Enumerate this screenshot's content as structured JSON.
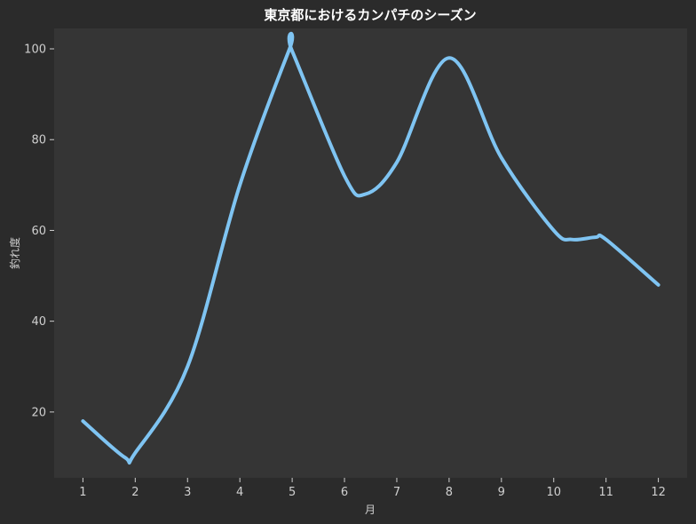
{
  "chart_data": {
    "type": "line",
    "title": "東京都におけるカンパチのシーズン",
    "xlabel": "月",
    "ylabel": "釣れ度",
    "x": [
      1,
      2,
      3,
      4,
      5,
      6,
      7,
      8,
      9,
      10,
      11,
      12
    ],
    "x_tick_labels": [
      "1",
      "2",
      "3",
      "4",
      "5",
      "6",
      "7",
      "8",
      "9",
      "10",
      "11",
      "12"
    ],
    "y_ticks": [
      20,
      40,
      60,
      80,
      100
    ],
    "y_tick_labels": [
      "20",
      "40",
      "60",
      "80",
      "100"
    ],
    "xlim": [
      0.45,
      12.55
    ],
    "ylim": [
      5.5,
      104.5
    ],
    "grid": false,
    "series": [
      {
        "x": [
          1,
          1.8,
          2,
          3,
          4,
          4.95,
          5,
          6,
          6.4,
          7,
          8,
          9,
          10,
          10.35,
          10.8,
          11,
          12
        ],
        "values": [
          18,
          10,
          11,
          30,
          70,
          100,
          99.5,
          72,
          68,
          75,
          98,
          76,
          60,
          58,
          58.5,
          58,
          48
        ],
        "color": "#7fc4f2"
      }
    ],
    "colors": {
      "background": "#2b2b2b",
      "plot_background": "#353535",
      "line": "#7fc4f2",
      "text": "#cfcfcf",
      "title": "#ffffff"
    }
  }
}
